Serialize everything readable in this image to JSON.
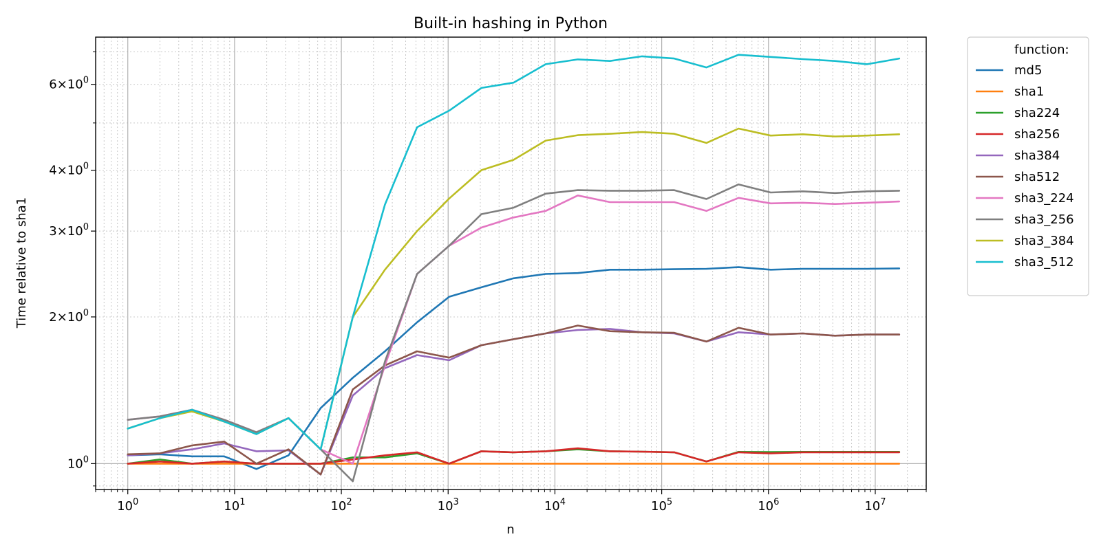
{
  "chart_data": {
    "type": "line",
    "title": "Built-in hashing in Python",
    "xlabel": "n",
    "ylabel": "Time relative to sha1",
    "xscale": "log",
    "yscale": "log",
    "xlim": [
      0.5,
      30000000
    ],
    "ylim": [
      0.885,
      7.5
    ],
    "grid": true,
    "legend": {
      "title": "function:",
      "placement": "outside upper right"
    },
    "x_ticks": [
      {
        "value": 1,
        "base": "10",
        "exp": "0"
      },
      {
        "value": 10,
        "base": "10",
        "exp": "1"
      },
      {
        "value": 100,
        "base": "10",
        "exp": "2"
      },
      {
        "value": 1000,
        "base": "10",
        "exp": "3"
      },
      {
        "value": 10000,
        "base": "10",
        "exp": "4"
      },
      {
        "value": 100000,
        "base": "10",
        "exp": "5"
      },
      {
        "value": 1000000,
        "base": "10",
        "exp": "6"
      },
      {
        "value": 10000000,
        "base": "10",
        "exp": "7"
      }
    ],
    "y_ticks": [
      {
        "value": 1,
        "mant": "10",
        "exp": "0",
        "label": "10^0"
      },
      {
        "value": 2,
        "mant": "2×10",
        "exp": "0",
        "label": "2×10^0"
      },
      {
        "value": 3,
        "mant": "3×10",
        "exp": "0",
        "label": "3×10^0"
      },
      {
        "value": 4,
        "mant": "4×10",
        "exp": "0",
        "label": "4×10^0"
      },
      {
        "value": 6,
        "mant": "6×10",
        "exp": "0",
        "label": "6×10^0"
      }
    ],
    "x": [
      1,
      2,
      4,
      8,
      16,
      32,
      64,
      128,
      256,
      512,
      1024,
      2048,
      4096,
      8192,
      16384,
      32768,
      65536,
      131072,
      262144,
      524288,
      1048576,
      2097152,
      4194304,
      8388608,
      16777216
    ],
    "series": [
      {
        "name": "md5",
        "color": "#1f77b4",
        "values": [
          1.04,
          1.045,
          1.035,
          1.035,
          0.975,
          1.04,
          1.3,
          1.5,
          1.7,
          1.95,
          2.2,
          2.3,
          2.4,
          2.45,
          2.46,
          2.5,
          2.5,
          2.505,
          2.51,
          2.53,
          2.5,
          2.51,
          2.51,
          2.51,
          2.515
        ]
      },
      {
        "name": "sha1",
        "color": "#ff7f0e",
        "values": [
          1,
          1,
          1,
          1,
          1,
          1,
          1,
          1,
          1,
          1,
          1,
          1,
          1,
          1,
          1,
          1,
          1,
          1,
          1,
          1,
          1,
          1,
          1,
          1,
          1
        ]
      },
      {
        "name": "sha224",
        "color": "#2ca02c",
        "values": [
          1,
          1.02,
          1.0,
          1.01,
          1.0,
          1.0,
          1.0,
          1.03,
          1.03,
          1.05,
          1.0,
          1.06,
          1.055,
          1.06,
          1.07,
          1.06,
          1.058,
          1.055,
          1.01,
          1.057,
          1.056,
          1.057,
          1.057,
          1.057,
          1.057
        ]
      },
      {
        "name": "sha256",
        "color": "#d62728",
        "values": [
          1,
          1.01,
          1.0,
          1.01,
          1.0,
          1.0,
          1.0,
          1.02,
          1.04,
          1.055,
          1.0,
          1.06,
          1.055,
          1.06,
          1.075,
          1.06,
          1.058,
          1.055,
          1.01,
          1.055,
          1.05,
          1.055,
          1.055,
          1.055,
          1.055
        ]
      },
      {
        "name": "sha384",
        "color": "#9467bd",
        "values": [
          1.04,
          1.05,
          1.07,
          1.1,
          1.06,
          1.065,
          0.95,
          1.38,
          1.57,
          1.67,
          1.63,
          1.75,
          1.8,
          1.85,
          1.88,
          1.89,
          1.86,
          1.85,
          1.78,
          1.86,
          1.84,
          1.85,
          1.83,
          1.84,
          1.84
        ]
      },
      {
        "name": "sha512",
        "color": "#8c564b",
        "values": [
          1.045,
          1.05,
          1.09,
          1.11,
          1.0,
          1.07,
          0.95,
          1.42,
          1.59,
          1.7,
          1.65,
          1.75,
          1.8,
          1.85,
          1.92,
          1.87,
          1.86,
          1.855,
          1.78,
          1.9,
          1.84,
          1.85,
          1.83,
          1.84,
          1.84
        ]
      },
      {
        "name": "sha3_224",
        "color": "#e377c2",
        "values": [
          1.23,
          1.25,
          1.29,
          1.23,
          1.16,
          1.24,
          1.07,
          1.0,
          1.59,
          2.45,
          2.8,
          3.05,
          3.2,
          3.3,
          3.55,
          3.44,
          3.44,
          3.44,
          3.3,
          3.51,
          3.42,
          3.43,
          3.41,
          3.43,
          3.45
        ]
      },
      {
        "name": "sha3_256",
        "color": "#7f7f7f",
        "values": [
          1.23,
          1.25,
          1.29,
          1.23,
          1.16,
          1.24,
          1.07,
          0.92,
          1.62,
          2.45,
          2.8,
          3.25,
          3.35,
          3.58,
          3.64,
          3.63,
          3.63,
          3.64,
          3.49,
          3.74,
          3.6,
          3.62,
          3.59,
          3.62,
          3.63
        ]
      },
      {
        "name": "sha3_384",
        "color": "#bcbd22",
        "values": [
          1.18,
          1.24,
          1.28,
          1.22,
          1.15,
          1.24,
          1.07,
          2.0,
          2.5,
          3.0,
          3.5,
          4.0,
          4.2,
          4.6,
          4.72,
          4.75,
          4.79,
          4.75,
          4.55,
          4.87,
          4.71,
          4.74,
          4.69,
          4.71,
          4.74
        ]
      },
      {
        "name": "sha3_512",
        "color": "#17becf",
        "values": [
          1.18,
          1.24,
          1.29,
          1.22,
          1.15,
          1.24,
          1.07,
          2.0,
          3.4,
          4.9,
          5.3,
          5.9,
          6.05,
          6.6,
          6.75,
          6.7,
          6.85,
          6.78,
          6.5,
          6.9,
          6.83,
          6.76,
          6.7,
          6.6,
          6.78
        ]
      }
    ]
  }
}
